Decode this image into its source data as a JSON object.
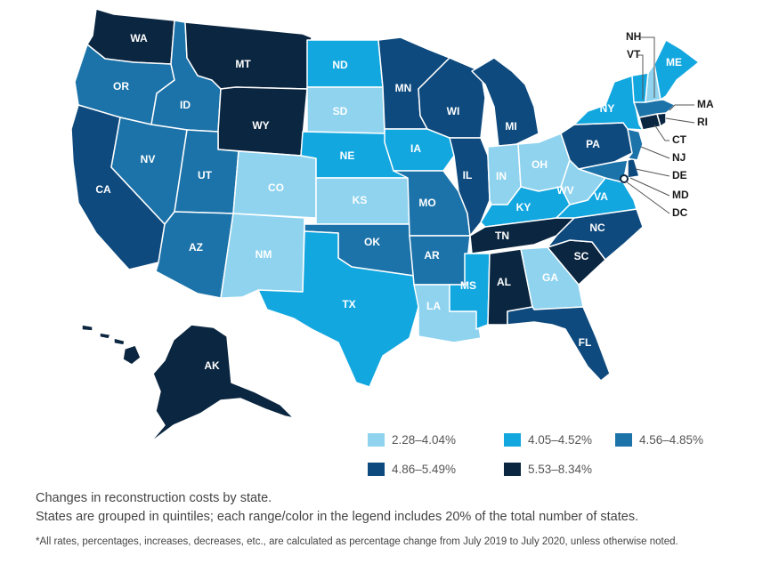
{
  "map": {
    "title": "Changes in reconstruction costs by state",
    "colors": {
      "q1": "#8fd3ef",
      "q2": "#13a7e0",
      "q3": "#1c73a9",
      "q4": "#0e4a7e",
      "q5": "#0b2640"
    },
    "states": [
      {
        "abbr": "WA",
        "q": "q5"
      },
      {
        "abbr": "OR",
        "q": "q3"
      },
      {
        "abbr": "CA",
        "q": "q4"
      },
      {
        "abbr": "ID",
        "q": "q3"
      },
      {
        "abbr": "NV",
        "q": "q3"
      },
      {
        "abbr": "MT",
        "q": "q5"
      },
      {
        "abbr": "WY",
        "q": "q5"
      },
      {
        "abbr": "UT",
        "q": "q3"
      },
      {
        "abbr": "AZ",
        "q": "q3"
      },
      {
        "abbr": "CO",
        "q": "q1"
      },
      {
        "abbr": "NM",
        "q": "q1"
      },
      {
        "abbr": "ND",
        "q": "q2"
      },
      {
        "abbr": "SD",
        "q": "q1"
      },
      {
        "abbr": "NE",
        "q": "q2"
      },
      {
        "abbr": "KS",
        "q": "q1"
      },
      {
        "abbr": "OK",
        "q": "q3"
      },
      {
        "abbr": "TX",
        "q": "q2"
      },
      {
        "abbr": "MN",
        "q": "q4"
      },
      {
        "abbr": "IA",
        "q": "q2"
      },
      {
        "abbr": "MO",
        "q": "q3"
      },
      {
        "abbr": "AR",
        "q": "q3"
      },
      {
        "abbr": "LA",
        "q": "q1"
      },
      {
        "abbr": "WI",
        "q": "q4"
      },
      {
        "abbr": "IL",
        "q": "q4"
      },
      {
        "abbr": "MI",
        "q": "q4"
      },
      {
        "abbr": "IN",
        "q": "q1"
      },
      {
        "abbr": "OH",
        "q": "q1"
      },
      {
        "abbr": "KY",
        "q": "q2"
      },
      {
        "abbr": "TN",
        "q": "q5"
      },
      {
        "abbr": "MS",
        "q": "q2"
      },
      {
        "abbr": "AL",
        "q": "q5"
      },
      {
        "abbr": "GA",
        "q": "q1"
      },
      {
        "abbr": "FL",
        "q": "q4"
      },
      {
        "abbr": "SC",
        "q": "q5"
      },
      {
        "abbr": "NC",
        "q": "q4"
      },
      {
        "abbr": "VA",
        "q": "q2"
      },
      {
        "abbr": "WV",
        "q": "q1"
      },
      {
        "abbr": "PA",
        "q": "q4"
      },
      {
        "abbr": "NY",
        "q": "q2"
      },
      {
        "abbr": "ME",
        "q": "q2"
      },
      {
        "abbr": "AK",
        "q": "q5"
      },
      {
        "abbr": "HI",
        "q": "q5"
      },
      {
        "abbr": "VT",
        "q": "q2"
      },
      {
        "abbr": "NH",
        "q": "q1"
      },
      {
        "abbr": "MA",
        "q": "q3"
      },
      {
        "abbr": "RI",
        "q": "q5"
      },
      {
        "abbr": "CT",
        "q": "q5"
      },
      {
        "abbr": "NJ",
        "q": "q3"
      },
      {
        "abbr": "DE",
        "q": "q4"
      },
      {
        "abbr": "MD",
        "q": "q3"
      },
      {
        "abbr": "DC",
        "q": "q5"
      }
    ]
  },
  "legend": [
    {
      "label": "2.28–4.04%",
      "q": "q1"
    },
    {
      "label": "4.05–4.52%",
      "q": "q2"
    },
    {
      "label": "4.56–4.85%",
      "q": "q3"
    },
    {
      "label": "4.86–5.49%",
      "q": "q4"
    },
    {
      "label": "5.53–8.34%",
      "q": "q5"
    }
  ],
  "caption": {
    "line1": "Changes in reconstruction costs by state.",
    "line2": "States are grouped in quintiles; each range/color in the legend includes 20% of the total number of states."
  },
  "footnote": "*All rates, percentages, increases, decreases, etc., are calculated as percentage change from July 2019 to July 2020, unless otherwise noted."
}
